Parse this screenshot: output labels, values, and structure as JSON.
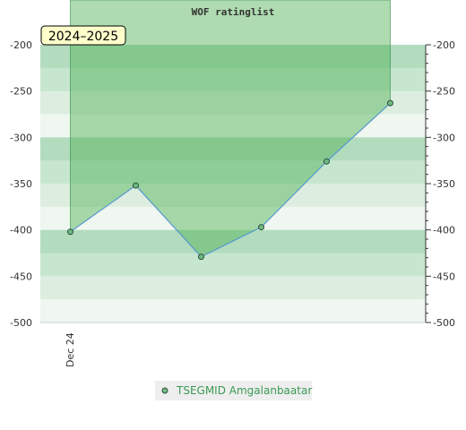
{
  "chart_data": {
    "type": "line",
    "title": "WOF ratinglist",
    "period_label": "2024–2025",
    "x_tick_label": "Dec 24",
    "x": [
      1,
      2,
      3,
      4,
      5,
      6
    ],
    "series": [
      {
        "name": "TSEGMID Amgalanbaatar",
        "values": [
          -402,
          -352,
          -429,
          -397,
          -326,
          -263
        ]
      }
    ],
    "ylim": [
      -500,
      -200
    ],
    "yticks": [
      -200,
      -250,
      -300,
      -350,
      -400,
      -450,
      -500
    ],
    "grid": true,
    "legend_position": "bottom-center",
    "colors": {
      "line": "#5b9bd5",
      "marker_fill": "#6fba80",
      "marker_stroke": "#2f4f3f",
      "area_fill": "#4caf50",
      "band_dark": "#b3dcbf",
      "band_mid": "#c7e6cf",
      "band_light": "#ddeee0",
      "band_lightest": "#eff7f0",
      "legend_text": "#3a9a55",
      "legend_bg": "#eeeeee",
      "period_bg": "#ffffcc"
    }
  }
}
